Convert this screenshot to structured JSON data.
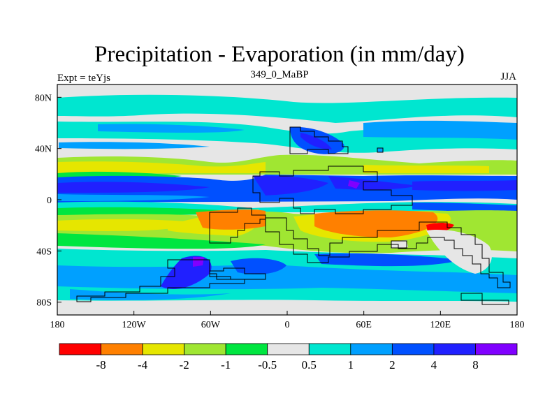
{
  "figure": {
    "title": "Precipitation - Evaporation (in mm/day)",
    "center_label": "349_0_MaBP",
    "left_label": "Expt = teYjs",
    "right_label": "JJA"
  },
  "axes": {
    "x_ticks": [
      {
        "value": -180,
        "label": "180"
      },
      {
        "value": -120,
        "label": "120W"
      },
      {
        "value": -60,
        "label": "60W"
      },
      {
        "value": 0,
        "label": "0"
      },
      {
        "value": 60,
        "label": "60E"
      },
      {
        "value": 120,
        "label": "120E"
      },
      {
        "value": 180,
        "label": "180"
      }
    ],
    "y_ticks": [
      {
        "value": 80,
        "label": "80N"
      },
      {
        "value": 40,
        "label": "40N"
      },
      {
        "value": 0,
        "label": "0"
      },
      {
        "value": -40,
        "label": "40S"
      },
      {
        "value": -80,
        "label": "80S"
      }
    ],
    "xlim": [
      -180,
      180
    ],
    "ylim": [
      -90,
      90
    ]
  },
  "colorbar": {
    "colors": [
      "#ff0000",
      "#ff8000",
      "#e6e600",
      "#a0e632",
      "#00e640",
      "#e6e6e6",
      "#00e6d0",
      "#00a0ff",
      "#0050ff",
      "#2020ff",
      "#8000ff"
    ],
    "labels": [
      "-8",
      "-4",
      "-2",
      "-1",
      "-0.5",
      "0.5",
      "1",
      "2",
      "4",
      "8"
    ]
  }
}
